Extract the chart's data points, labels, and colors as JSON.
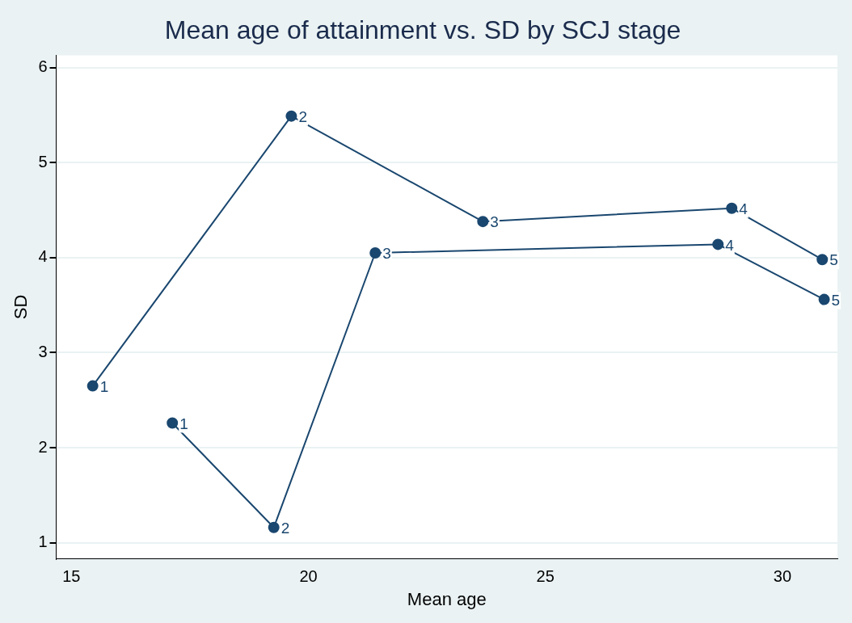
{
  "chart_data": {
    "type": "line",
    "title": "Mean age of attainment vs. SD by SCJ stage",
    "xlabel": "Mean age",
    "ylabel": "SD",
    "xlim": [
      14.68,
      31.16
    ],
    "xticks": [
      15,
      20,
      25,
      30
    ],
    "ylim": [
      0.83,
      6.13
    ],
    "yticks": [
      1,
      2,
      3,
      4,
      5,
      6
    ],
    "grid": "y",
    "legend": false,
    "marker": "circle",
    "line_style": "solid",
    "series": [
      {
        "color": "#1a476f",
        "x": [
          15.45,
          19.64,
          23.68,
          28.93,
          30.84
        ],
        "values": [
          2.65,
          5.49,
          4.38,
          4.52,
          3.98
        ]
      },
      {
        "color": "#1a476f",
        "x": [
          17.13,
          19.27,
          21.41,
          28.64,
          30.88
        ],
        "values": [
          2.26,
          1.16,
          4.05,
          4.14,
          3.56
        ]
      }
    ],
    "annotations": [
      {
        "text": "1",
        "x": 15.45,
        "y": 2.65
      },
      {
        "text": "2",
        "x": 19.64,
        "y": 5.49
      },
      {
        "text": "3",
        "x": 23.68,
        "y": 4.38
      },
      {
        "text": "4",
        "x": 28.93,
        "y": 4.52
      },
      {
        "text": "5",
        "x": 30.84,
        "y": 3.98
      },
      {
        "text": "1",
        "x": 17.13,
        "y": 2.26
      },
      {
        "text": "2",
        "x": 19.27,
        "y": 1.16
      },
      {
        "text": "3",
        "x": 21.41,
        "y": 4.05
      },
      {
        "text": "4",
        "x": 28.64,
        "y": 4.14
      },
      {
        "text": "5",
        "x": 30.88,
        "y": 3.56
      }
    ]
  }
}
